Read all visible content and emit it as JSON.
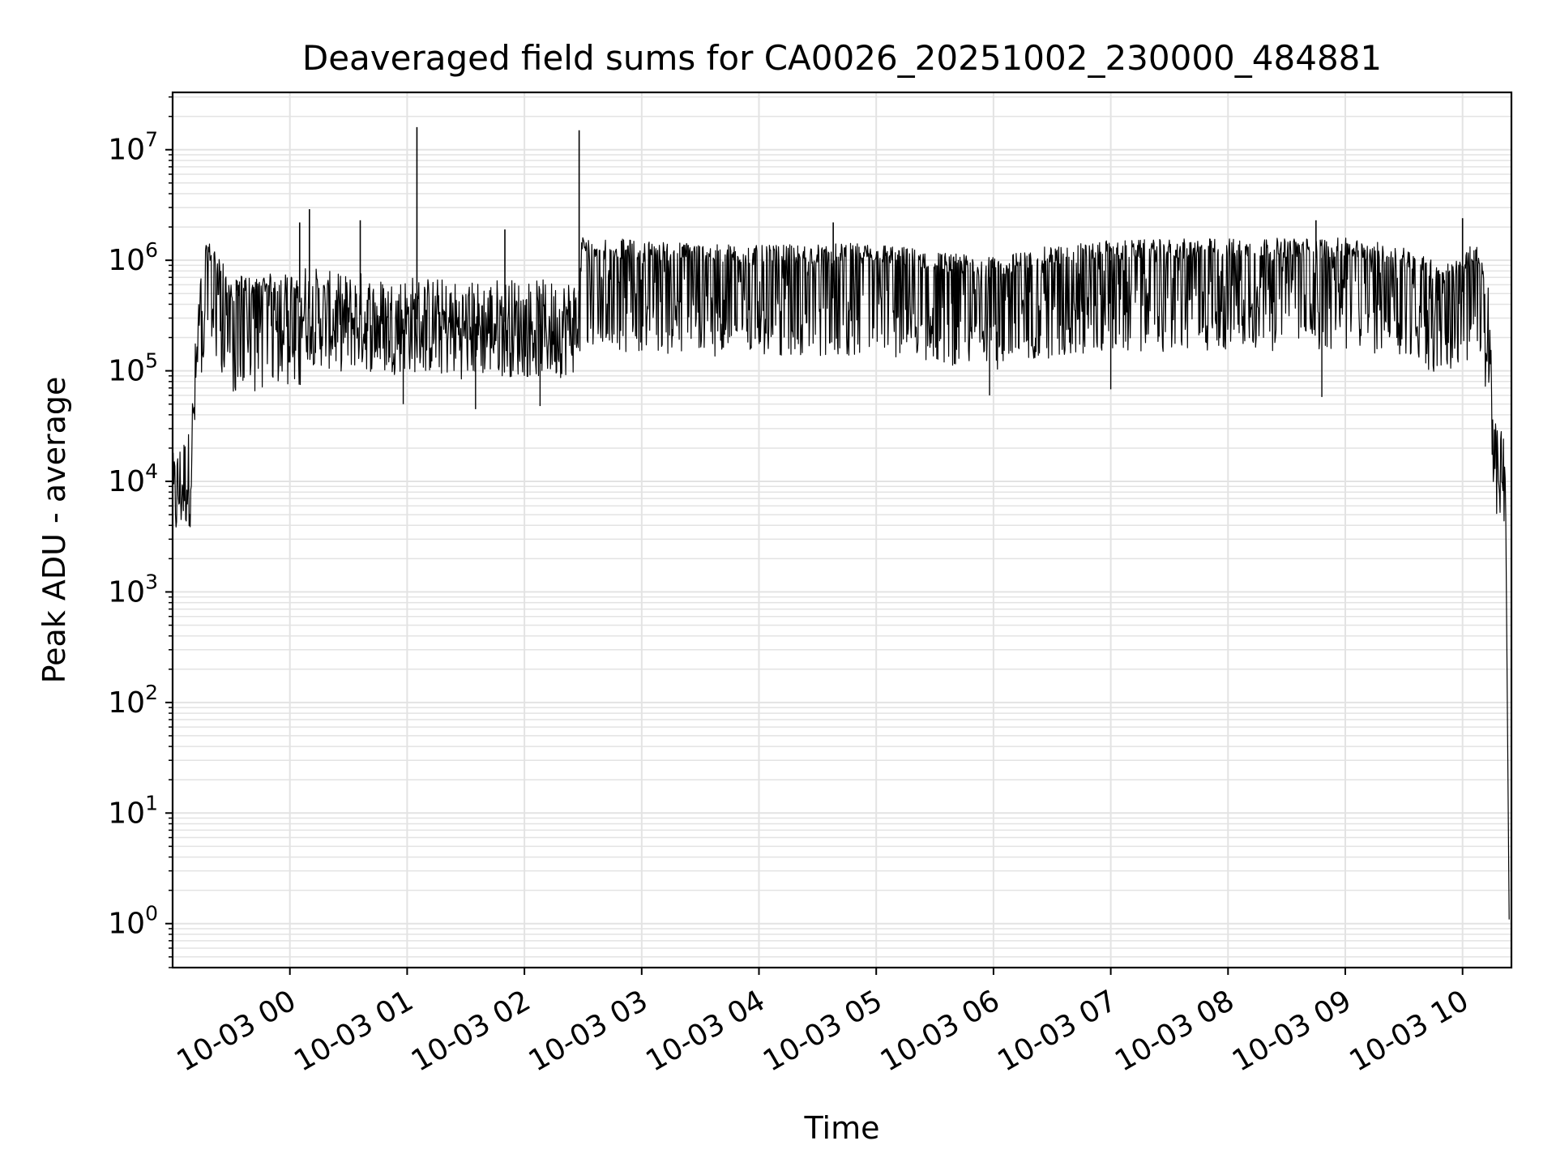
{
  "chart_data": {
    "type": "line",
    "title": "Deaveraged field sums for CA0026_20251002_230000_484881",
    "xlabel": "Time",
    "ylabel": "Peak ADU - average",
    "yscale": "log",
    "ylim": [
      0.4,
      33000000
    ],
    "xlim": [
      "2025-10-02 23:00",
      "2025-10-03 10:25"
    ],
    "grid": "on (major and minor)",
    "line_color": "#000000",
    "grid_color": "#e3e3e3",
    "xticks": [
      {
        "t": "2025-10-03 00:00",
        "label": "10-03 00"
      },
      {
        "t": "2025-10-03 01:00",
        "label": "10-03 01"
      },
      {
        "t": "2025-10-03 02:00",
        "label": "10-03 02"
      },
      {
        "t": "2025-10-03 03:00",
        "label": "10-03 03"
      },
      {
        "t": "2025-10-03 04:00",
        "label": "10-03 04"
      },
      {
        "t": "2025-10-03 05:00",
        "label": "10-03 05"
      },
      {
        "t": "2025-10-03 06:00",
        "label": "10-03 06"
      },
      {
        "t": "2025-10-03 07:00",
        "label": "10-03 07"
      },
      {
        "t": "2025-10-03 08:00",
        "label": "10-03 08"
      },
      {
        "t": "2025-10-03 09:00",
        "label": "10-03 09"
      },
      {
        "t": "2025-10-03 10:00",
        "label": "10-03 10"
      }
    ],
    "yticks": [
      {
        "value": 1,
        "base": "10",
        "exp": "0"
      },
      {
        "value": 10,
        "base": "10",
        "exp": "1"
      },
      {
        "value": 100,
        "base": "10",
        "exp": "2"
      },
      {
        "value": 1000,
        "base": "10",
        "exp": "3"
      },
      {
        "value": 10000,
        "base": "10",
        "exp": "4"
      },
      {
        "value": 100000,
        "base": "10",
        "exp": "5"
      },
      {
        "value": 1000000,
        "base": "10",
        "exp": "6"
      },
      {
        "value": 10000000,
        "base": "10",
        "exp": "7"
      }
    ],
    "series": [
      {
        "points": [
          [
            "2025-10-02 23:00",
            7000
          ],
          [
            "2025-10-02 23:03",
            9000
          ],
          [
            "2025-10-02 23:06",
            11000
          ],
          [
            "2025-10-02 23:09",
            12000
          ],
          [
            "2025-10-02 23:12",
            100000
          ],
          [
            "2025-10-02 23:15",
            700000
          ],
          [
            "2025-10-02 23:18",
            1000000
          ],
          [
            "2025-10-02 23:24",
            750000
          ],
          [
            "2025-10-02 23:30",
            400000
          ],
          [
            "2025-10-02 23:36",
            500000
          ],
          [
            "2025-10-02 23:42",
            450000
          ],
          [
            "2025-10-02 23:48",
            500000
          ],
          [
            "2025-10-02 23:54",
            500000
          ],
          [
            "2025-10-03 00:00",
            500000
          ],
          [
            "2025-10-03 00:06",
            400000
          ],
          [
            "2025-10-03 00:12",
            350000
          ],
          [
            "2025-10-03 00:24",
            300000
          ],
          [
            "2025-10-03 00:36",
            320000
          ],
          [
            "2025-10-03 00:48",
            280000
          ],
          [
            "2025-10-03 01:00",
            300000
          ],
          [
            "2025-10-03 01:15",
            280000
          ],
          [
            "2025-10-03 01:30",
            260000
          ],
          [
            "2025-10-03 01:45",
            280000
          ],
          [
            "2025-10-03 02:00",
            270000
          ],
          [
            "2025-10-03 02:15",
            260000
          ],
          [
            "2025-10-03 02:28",
            300000
          ],
          [
            "2025-10-03 02:29",
            1100000
          ],
          [
            "2025-10-03 03:00",
            1000000
          ],
          [
            "2025-10-03 04:00",
            900000
          ],
          [
            "2025-10-03 05:00",
            950000
          ],
          [
            "2025-10-03 05:30",
            800000
          ],
          [
            "2025-10-03 06:00",
            700000
          ],
          [
            "2025-10-03 06:30",
            900000
          ],
          [
            "2025-10-03 07:00",
            1000000
          ],
          [
            "2025-10-03 08:00",
            1050000
          ],
          [
            "2025-10-03 09:00",
            1050000
          ],
          [
            "2025-10-03 09:30",
            900000
          ],
          [
            "2025-10-03 09:50",
            600000
          ],
          [
            "2025-10-03 10:00",
            700000
          ],
          [
            "2025-10-03 10:06",
            1000000
          ],
          [
            "2025-10-03 10:10",
            700000
          ],
          [
            "2025-10-03 10:14",
            200000
          ],
          [
            "2025-10-03 10:16",
            20000
          ],
          [
            "2025-10-03 10:18",
            12000
          ],
          [
            "2025-10-03 10:20",
            15000
          ],
          [
            "2025-10-03 10:22",
            8000
          ],
          [
            "2025-10-03 10:24",
            0.5
          ]
        ],
        "spikes": [
          [
            "2025-10-03 01:05",
            16000000
          ],
          [
            "2025-10-03 02:28",
            15000000
          ],
          [
            "2025-10-03 00:10",
            2900000
          ],
          [
            "2025-10-03 00:05",
            2200000
          ],
          [
            "2025-10-03 00:36",
            2300000
          ],
          [
            "2025-10-03 01:50",
            1900000
          ],
          [
            "2025-10-03 04:38",
            2200000
          ],
          [
            "2025-10-03 10:00",
            2400000
          ],
          [
            "2025-10-03 08:45",
            2300000
          ]
        ],
        "dips": [
          [
            "2025-10-03 00:58",
            50000
          ],
          [
            "2025-10-03 01:35",
            45000
          ],
          [
            "2025-10-03 02:08",
            48000
          ],
          [
            "2025-10-03 05:58",
            60000
          ],
          [
            "2025-10-03 07:00",
            68000
          ],
          [
            "2025-10-03 08:48",
            58000
          ]
        ]
      }
    ]
  }
}
